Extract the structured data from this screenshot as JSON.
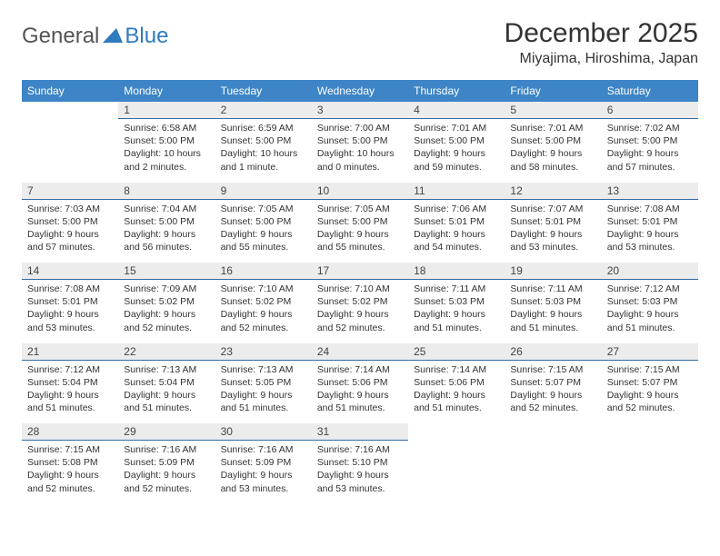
{
  "logo": {
    "general": "General",
    "blue": "Blue",
    "tri_color": "#2f7bbf"
  },
  "title": "December 2025",
  "location": "Miyajima, Hiroshima, Japan",
  "header_bg": "#3d85c6",
  "daybar_bg": "#ececec",
  "daybar_border": "#2f6da3",
  "days": [
    "Sunday",
    "Monday",
    "Tuesday",
    "Wednesday",
    "Thursday",
    "Friday",
    "Saturday"
  ],
  "weeks": [
    [
      null,
      {
        "n": "1",
        "sr": "6:58 AM",
        "ss": "5:00 PM",
        "dl": "10 hours and 2 minutes."
      },
      {
        "n": "2",
        "sr": "6:59 AM",
        "ss": "5:00 PM",
        "dl": "10 hours and 1 minute."
      },
      {
        "n": "3",
        "sr": "7:00 AM",
        "ss": "5:00 PM",
        "dl": "10 hours and 0 minutes."
      },
      {
        "n": "4",
        "sr": "7:01 AM",
        "ss": "5:00 PM",
        "dl": "9 hours and 59 minutes."
      },
      {
        "n": "5",
        "sr": "7:01 AM",
        "ss": "5:00 PM",
        "dl": "9 hours and 58 minutes."
      },
      {
        "n": "6",
        "sr": "7:02 AM",
        "ss": "5:00 PM",
        "dl": "9 hours and 57 minutes."
      }
    ],
    [
      {
        "n": "7",
        "sr": "7:03 AM",
        "ss": "5:00 PM",
        "dl": "9 hours and 57 minutes."
      },
      {
        "n": "8",
        "sr": "7:04 AM",
        "ss": "5:00 PM",
        "dl": "9 hours and 56 minutes."
      },
      {
        "n": "9",
        "sr": "7:05 AM",
        "ss": "5:00 PM",
        "dl": "9 hours and 55 minutes."
      },
      {
        "n": "10",
        "sr": "7:05 AM",
        "ss": "5:00 PM",
        "dl": "9 hours and 55 minutes."
      },
      {
        "n": "11",
        "sr": "7:06 AM",
        "ss": "5:01 PM",
        "dl": "9 hours and 54 minutes."
      },
      {
        "n": "12",
        "sr": "7:07 AM",
        "ss": "5:01 PM",
        "dl": "9 hours and 53 minutes."
      },
      {
        "n": "13",
        "sr": "7:08 AM",
        "ss": "5:01 PM",
        "dl": "9 hours and 53 minutes."
      }
    ],
    [
      {
        "n": "14",
        "sr": "7:08 AM",
        "ss": "5:01 PM",
        "dl": "9 hours and 53 minutes."
      },
      {
        "n": "15",
        "sr": "7:09 AM",
        "ss": "5:02 PM",
        "dl": "9 hours and 52 minutes."
      },
      {
        "n": "16",
        "sr": "7:10 AM",
        "ss": "5:02 PM",
        "dl": "9 hours and 52 minutes."
      },
      {
        "n": "17",
        "sr": "7:10 AM",
        "ss": "5:02 PM",
        "dl": "9 hours and 52 minutes."
      },
      {
        "n": "18",
        "sr": "7:11 AM",
        "ss": "5:03 PM",
        "dl": "9 hours and 51 minutes."
      },
      {
        "n": "19",
        "sr": "7:11 AM",
        "ss": "5:03 PM",
        "dl": "9 hours and 51 minutes."
      },
      {
        "n": "20",
        "sr": "7:12 AM",
        "ss": "5:03 PM",
        "dl": "9 hours and 51 minutes."
      }
    ],
    [
      {
        "n": "21",
        "sr": "7:12 AM",
        "ss": "5:04 PM",
        "dl": "9 hours and 51 minutes."
      },
      {
        "n": "22",
        "sr": "7:13 AM",
        "ss": "5:04 PM",
        "dl": "9 hours and 51 minutes."
      },
      {
        "n": "23",
        "sr": "7:13 AM",
        "ss": "5:05 PM",
        "dl": "9 hours and 51 minutes."
      },
      {
        "n": "24",
        "sr": "7:14 AM",
        "ss": "5:06 PM",
        "dl": "9 hours and 51 minutes."
      },
      {
        "n": "25",
        "sr": "7:14 AM",
        "ss": "5:06 PM",
        "dl": "9 hours and 51 minutes."
      },
      {
        "n": "26",
        "sr": "7:15 AM",
        "ss": "5:07 PM",
        "dl": "9 hours and 52 minutes."
      },
      {
        "n": "27",
        "sr": "7:15 AM",
        "ss": "5:07 PM",
        "dl": "9 hours and 52 minutes."
      }
    ],
    [
      {
        "n": "28",
        "sr": "7:15 AM",
        "ss": "5:08 PM",
        "dl": "9 hours and 52 minutes."
      },
      {
        "n": "29",
        "sr": "7:16 AM",
        "ss": "5:09 PM",
        "dl": "9 hours and 52 minutes."
      },
      {
        "n": "30",
        "sr": "7:16 AM",
        "ss": "5:09 PM",
        "dl": "9 hours and 53 minutes."
      },
      {
        "n": "31",
        "sr": "7:16 AM",
        "ss": "5:10 PM",
        "dl": "9 hours and 53 minutes."
      },
      null,
      null,
      null
    ]
  ],
  "labels": {
    "sunrise": "Sunrise:",
    "sunset": "Sunset:",
    "daylight": "Daylight:"
  }
}
